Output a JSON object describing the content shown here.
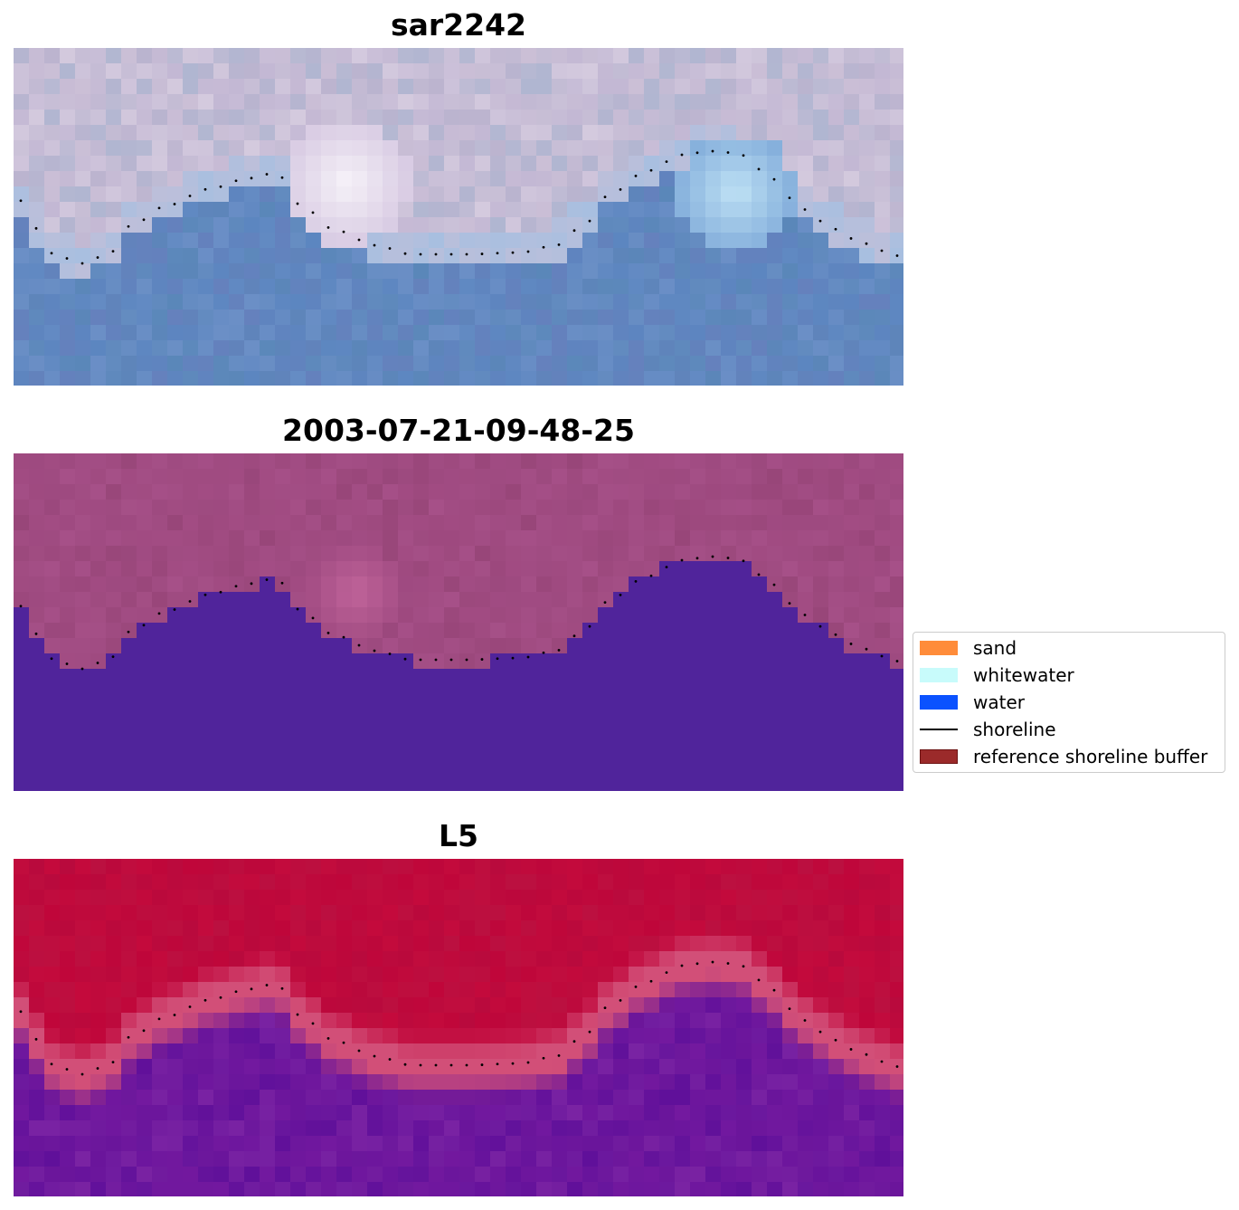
{
  "chart_data": [
    {
      "type": "heatmap",
      "title": "sar2242",
      "colors": {
        "land": [
          "#cbbfd6",
          "#c3b8d4",
          "#d4cade",
          "#bcb4cf",
          "#b0b6d1"
        ],
        "glow": "#f6f2f8",
        "glow2": "#bfe2f5",
        "water": [
          "#5c86c0",
          "#6b8fc6",
          "#5a87b9",
          "#6581bd"
        ],
        "edge": "#a8bfe0"
      },
      "shoreline_dots": true
    },
    {
      "type": "heatmap",
      "title": "2003-07-21-09-48-25",
      "colors": {
        "land": [
          "#a24c83",
          "#9e4a80",
          "#a65088",
          "#984679"
        ],
        "glow": "#c0649a",
        "water_solid": "#50249b"
      },
      "shoreline_dots": true
    },
    {
      "type": "heatmap",
      "title": "L5",
      "colors": {
        "land": [
          "#c0063a",
          "#b90a3d",
          "#c40a3c",
          "#bb1040"
        ],
        "band": "#d24f78",
        "water": [
          "#6a159b",
          "#73199f",
          "#60109a",
          "#7a23a3"
        ]
      },
      "shoreline_dots": true
    }
  ],
  "legend": {
    "items": [
      {
        "label": "sand",
        "color": "#ff8c3a",
        "kind": "patch"
      },
      {
        "label": "whitewater",
        "color": "#c8fbfb",
        "kind": "patch"
      },
      {
        "label": "water",
        "color": "#0b52ff",
        "kind": "patch"
      },
      {
        "label": "shoreline",
        "color": "#000000",
        "kind": "line"
      },
      {
        "label": "reference shoreline buffer",
        "color": "#9b2a2a",
        "kind": "patch"
      }
    ]
  }
}
